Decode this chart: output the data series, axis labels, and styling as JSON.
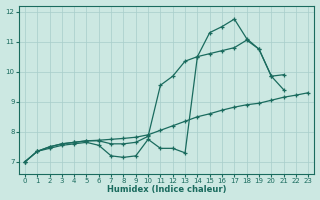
{
  "bg_color": "#cce8e2",
  "grid_color": "#a8ceca",
  "line_color": "#1a6b5e",
  "xlabel": "Humidex (Indice chaleur)",
  "xlim_min": -0.5,
  "xlim_max": 23.5,
  "ylim_min": 6.6,
  "ylim_max": 12.2,
  "yticks": [
    7,
    8,
    9,
    10,
    11,
    12
  ],
  "xticks": [
    0,
    1,
    2,
    3,
    4,
    5,
    6,
    7,
    8,
    9,
    10,
    11,
    12,
    13,
    14,
    15,
    16,
    17,
    18,
    19,
    20,
    21,
    22,
    23
  ],
  "line_straight_x": [
    0,
    1,
    2,
    3,
    4,
    5,
    6,
    7,
    8,
    9,
    10,
    11,
    12,
    13,
    14,
    15,
    16,
    17,
    18,
    19,
    20,
    21,
    22,
    23
  ],
  "line_straight_y": [
    7.0,
    7.35,
    7.5,
    7.6,
    7.65,
    7.7,
    7.72,
    7.75,
    7.78,
    7.82,
    7.9,
    8.05,
    8.2,
    8.35,
    8.5,
    8.6,
    8.72,
    8.82,
    8.9,
    8.95,
    9.05,
    9.15,
    9.22,
    9.3
  ],
  "line_mid_x": [
    0,
    1,
    2,
    3,
    4,
    5,
    6,
    7,
    8,
    9,
    10,
    11,
    12,
    13,
    14,
    15,
    16,
    17,
    18,
    19,
    20,
    21
  ],
  "line_mid_y": [
    7.0,
    7.35,
    7.5,
    7.6,
    7.65,
    7.7,
    7.7,
    7.6,
    7.6,
    7.65,
    7.85,
    9.55,
    9.85,
    10.35,
    10.5,
    10.6,
    10.7,
    10.8,
    11.05,
    10.75,
    9.85,
    9.9
  ],
  "line_sharp_x": [
    0,
    1,
    2,
    3,
    4,
    5,
    6,
    7,
    8,
    9,
    10,
    11,
    12,
    13,
    14,
    15,
    16,
    17,
    18,
    19,
    20,
    21
  ],
  "line_sharp_y": [
    7.0,
    7.35,
    7.45,
    7.55,
    7.6,
    7.65,
    7.55,
    7.2,
    7.15,
    7.2,
    7.75,
    7.45,
    7.45,
    7.3,
    10.5,
    11.3,
    11.5,
    11.75,
    11.1,
    10.75,
    9.85,
    9.4
  ]
}
